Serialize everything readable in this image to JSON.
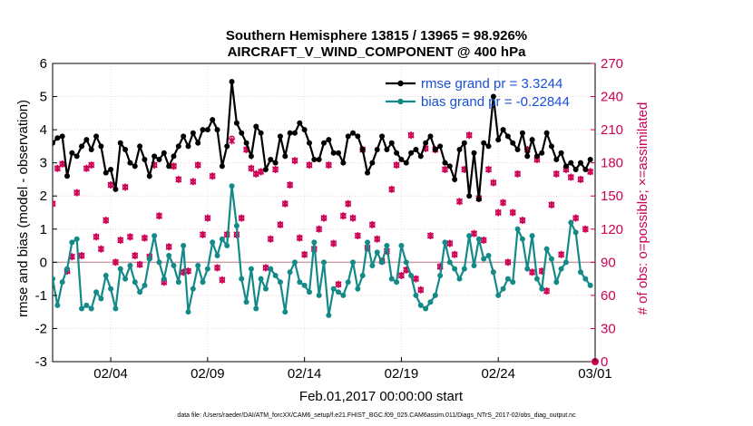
{
  "chart_data": {
    "type": "line",
    "title": "Southern Hemisphere 13815 / 13965 = 98.926%",
    "subtitle": "AIRCRAFT_V_WIND_COMPONENT @ 400 hPa",
    "xlabel": "Feb.01,2017 00:00:00 start",
    "ylabel": "rmse and bias (model - observation)",
    "ylabel_right": "# of obs: o=possible; ×=assimilated",
    "footnote": "data file: /Users/raeder/DAI/ATM_forcXX/CAM6_setup/f.e21.FHIST_BGC.f09_025.CAM6assim.011/Diags_NTrS_2017-02/obs_diag_output.nc",
    "xlim": [
      1.0,
      29.0
    ],
    "ylim": [
      -3,
      6
    ],
    "ylim_right": [
      0,
      270
    ],
    "x_ticks": [
      4,
      9,
      14,
      19,
      24,
      29
    ],
    "x_tick_labels": [
      "02/04",
      "02/09",
      "02/14",
      "02/19",
      "02/24",
      "03/01"
    ],
    "y_ticks": [
      -3,
      -2,
      -1,
      0,
      1,
      2,
      3,
      4,
      5,
      6
    ],
    "y_tick_labels": [
      "-3",
      "-2",
      "-1",
      "0",
      "1",
      "2",
      "3",
      "4",
      "5",
      "6"
    ],
    "y_right_ticks": [
      0,
      30,
      60,
      90,
      120,
      150,
      180,
      210,
      240,
      270
    ],
    "y_right_tick_labels": [
      "0",
      "30",
      "60",
      "90",
      "120",
      "150",
      "180",
      "210",
      "240",
      "270"
    ],
    "grid": true,
    "legend": [
      {
        "name": "rmse grand pr = 3.3244",
        "color": "#000000"
      },
      {
        "name": "bias grand pr = -0.22844",
        "color": "#138a88"
      }
    ],
    "series": [
      {
        "name": "rmse",
        "color": "#000000",
        "x": [
          1.0,
          1.25,
          1.5,
          1.75,
          2.0,
          2.25,
          2.5,
          2.75,
          3.0,
          3.25,
          3.5,
          3.75,
          4.0,
          4.25,
          4.5,
          4.75,
          5.0,
          5.25,
          5.5,
          5.75,
          6.0,
          6.25,
          6.5,
          6.75,
          7.0,
          7.25,
          7.5,
          7.75,
          8.0,
          8.25,
          8.5,
          8.75,
          9.0,
          9.25,
          9.5,
          9.75,
          10.0,
          10.25,
          10.5,
          10.75,
          11.0,
          11.25,
          11.5,
          11.75,
          12.0,
          12.25,
          12.5,
          12.75,
          13.0,
          13.25,
          13.5,
          13.75,
          14.0,
          14.25,
          14.5,
          14.75,
          15.0,
          15.25,
          15.5,
          15.75,
          16.0,
          16.25,
          16.5,
          16.75,
          17.0,
          17.25,
          17.5,
          17.75,
          18.0,
          18.25,
          18.5,
          18.75,
          19.0,
          19.25,
          19.5,
          19.75,
          20.0,
          20.25,
          20.5,
          20.75,
          21.0,
          21.25,
          21.5,
          21.75,
          22.0,
          22.25,
          22.5,
          22.75,
          23.0,
          23.25,
          23.5,
          23.75,
          24.0,
          24.25,
          24.5,
          24.75,
          25.0,
          25.25,
          25.5,
          25.75,
          26.0,
          26.25,
          26.5,
          26.75,
          27.0,
          27.25,
          27.5,
          27.75,
          28.0,
          28.25,
          28.5,
          28.75
        ],
        "values": [
          3.6,
          3.75,
          3.8,
          2.6,
          3.3,
          3.2,
          3.5,
          3.7,
          3.4,
          3.8,
          3.5,
          2.7,
          2.8,
          2.2,
          3.6,
          3.4,
          3.0,
          2.9,
          3.5,
          3.1,
          2.6,
          3.2,
          3.1,
          3.3,
          2.9,
          3.2,
          3.5,
          3.8,
          3.5,
          3.9,
          3.6,
          4.0,
          4.0,
          4.3,
          4.0,
          2.9,
          3.5,
          5.45,
          4.2,
          3.9,
          3.6,
          3.2,
          4.1,
          3.9,
          2.8,
          3.1,
          3.0,
          3.8,
          3.2,
          3.9,
          3.9,
          4.2,
          4.0,
          3.6,
          3.1,
          3.1,
          3.6,
          3.7,
          3.3,
          3.3,
          3.0,
          3.8,
          3.9,
          3.8,
          3.4,
          2.7,
          3.0,
          3.4,
          3.8,
          3.4,
          3.6,
          3.3,
          3.1,
          3.0,
          3.3,
          3.4,
          3.2,
          3.6,
          3.8,
          3.4,
          3.5,
          3.0,
          2.9,
          2.5,
          3.4,
          3.6,
          2.0,
          3.3,
          1.9,
          3.6,
          3.5,
          5.0,
          3.7,
          4.0,
          3.8,
          3.6,
          3.4,
          3.9,
          3.2,
          3.7,
          3.2,
          3.3,
          3.9,
          3.5,
          3.1,
          3.3,
          2.9,
          3.0,
          2.8,
          3.0,
          2.8,
          3.1
        ]
      },
      {
        "name": "bias",
        "color": "#138a88",
        "x": [
          1.0,
          1.25,
          1.5,
          1.75,
          2.0,
          2.25,
          2.5,
          2.75,
          3.0,
          3.25,
          3.5,
          3.75,
          4.0,
          4.25,
          4.5,
          4.75,
          5.0,
          5.25,
          5.5,
          5.75,
          6.0,
          6.25,
          6.5,
          6.75,
          7.0,
          7.25,
          7.5,
          7.75,
          8.0,
          8.25,
          8.5,
          8.75,
          9.0,
          9.25,
          9.5,
          9.75,
          10.0,
          10.25,
          10.5,
          10.75,
          11.0,
          11.25,
          11.5,
          11.75,
          12.0,
          12.25,
          12.5,
          12.75,
          13.0,
          13.25,
          13.5,
          13.75,
          14.0,
          14.25,
          14.5,
          14.75,
          15.0,
          15.25,
          15.5,
          15.75,
          16.0,
          16.25,
          16.5,
          16.75,
          17.0,
          17.25,
          17.5,
          17.75,
          18.0,
          18.25,
          18.5,
          18.75,
          19.0,
          19.25,
          19.5,
          19.75,
          20.0,
          20.25,
          20.5,
          20.75,
          21.0,
          21.25,
          21.5,
          21.75,
          22.0,
          22.25,
          22.5,
          22.75,
          23.0,
          23.25,
          23.5,
          23.75,
          24.0,
          24.25,
          24.5,
          24.75,
          25.0,
          25.25,
          25.5,
          25.75,
          26.0,
          26.25,
          26.5,
          26.75,
          27.0,
          27.25,
          27.5,
          27.75,
          28.0,
          28.25,
          28.5,
          28.75
        ],
        "values": [
          -0.5,
          -1.3,
          -0.6,
          -0.2,
          0.6,
          0.7,
          -1.4,
          -1.3,
          -1.4,
          -0.9,
          -1.1,
          -0.4,
          -0.8,
          -1.4,
          -0.2,
          -0.5,
          -0.1,
          -0.6,
          -0.9,
          -0.7,
          0.1,
          0.8,
          0.0,
          -0.5,
          0.2,
          -0.1,
          -0.6,
          0.5,
          -1.5,
          -0.8,
          -0.1,
          -0.6,
          -0.2,
          0.6,
          0.2,
          0.7,
          0.5,
          2.3,
          1.1,
          -0.5,
          -1.2,
          -0.2,
          -1.4,
          -0.5,
          -0.8,
          -0.2,
          -0.4,
          -0.6,
          -1.5,
          -0.3,
          0.0,
          -0.6,
          -0.7,
          -0.9,
          0.6,
          -1.0,
          0.0,
          -1.6,
          -0.8,
          -0.9,
          -1.0,
          -0.6,
          0.0,
          -0.8,
          -0.4,
          0.6,
          -0.1,
          0.3,
          0.0,
          0.5,
          -0.5,
          -0.6,
          0.5,
          0.0,
          -0.4,
          -1.0,
          -1.3,
          -1.4,
          -1.2,
          -1.0,
          -0.4,
          0.6,
          0.0,
          -0.2,
          -0.5,
          -0.2,
          0.8,
          -0.1,
          0.7,
          0.1,
          0.2,
          -0.3,
          -1.0,
          -0.8,
          -0.5,
          -0.6,
          1.0,
          0.7,
          -0.2,
          0.8,
          -0.5,
          -0.8,
          0.4,
          0.1,
          -0.6,
          -0.2,
          0.0,
          1.2,
          0.9,
          -0.3,
          -0.5,
          -0.7
        ]
      },
      {
        "name": "obs possible (o)",
        "color": "#cc0055",
        "axis": "right",
        "x": [
          1.0,
          1.25,
          1.5,
          1.75,
          2.0,
          2.25,
          2.5,
          2.75,
          3.0,
          3.25,
          3.5,
          3.75,
          4.0,
          4.25,
          4.5,
          4.75,
          5.0,
          5.25,
          5.5,
          5.75,
          6.0,
          6.25,
          6.5,
          6.75,
          7.0,
          7.25,
          7.5,
          7.75,
          8.0,
          8.25,
          8.5,
          8.75,
          9.0,
          9.25,
          9.5,
          9.75,
          10.0,
          10.25,
          10.5,
          10.75,
          11.0,
          11.25,
          11.5,
          11.75,
          12.0,
          12.25,
          12.5,
          12.75,
          13.0,
          13.25,
          13.5,
          13.75,
          14.0,
          14.25,
          14.5,
          14.75,
          15.0,
          15.25,
          15.5,
          15.75,
          16.0,
          16.25,
          16.5,
          16.75,
          17.0,
          17.25,
          17.5,
          17.75,
          18.0,
          18.25,
          18.5,
          18.75,
          19.0,
          19.25,
          19.5,
          19.75,
          20.0,
          20.25,
          20.5,
          20.75,
          21.0,
          21.25,
          21.5,
          21.75,
          22.0,
          22.25,
          22.5,
          22.75,
          23.0,
          23.25,
          23.5,
          23.75,
          24.0,
          24.25,
          24.5,
          24.75,
          25.0,
          25.25,
          25.5,
          25.75,
          26.0,
          26.25,
          26.5,
          26.75,
          27.0,
          27.25,
          27.5,
          27.75,
          28.0,
          28.25,
          28.5,
          28.75
        ],
        "values": [
          143,
          175,
          179,
          82,
          95,
          153,
          96,
          175,
          178,
          113,
          102,
          128,
          160,
          90,
          110,
          158,
          113,
          96,
          88,
          112,
          95,
          178,
          132,
          72,
          104,
          177,
          165,
          81,
          82,
          163,
          178,
          115,
          130,
          168,
          85,
          74,
          115,
          202,
          115,
          130,
          192,
          175,
          170,
          172,
          85,
          111,
          174,
          124,
          143,
          160,
          182,
          112,
          97,
          178,
          102,
          120,
          130,
          178,
          107,
          70,
          132,
          143,
          130,
          114,
          192,
          103,
          124,
          111,
          91,
          100,
          156,
          178,
          78,
          83,
          205,
          75,
          65,
          193,
          114,
          192,
          86,
          174,
          107,
          97,
          145,
          174,
          205,
          116,
          148,
          110,
          174,
          162,
          135,
          144,
          90,
          135,
          170,
          128,
          192,
          81,
          183,
          82,
          64,
          142,
          170,
          97,
          174,
          167,
          130,
          165,
          120,
          172
        ]
      },
      {
        "name": "obs assimilated (x)",
        "color": "#cc0055",
        "axis": "right",
        "x": [
          1.0,
          1.25,
          1.5,
          1.75,
          2.0,
          2.25,
          2.5,
          2.75,
          3.0,
          3.25,
          3.5,
          3.75,
          4.0,
          4.25,
          4.5,
          4.75,
          5.0,
          5.25,
          5.5,
          5.75,
          6.0,
          6.25,
          6.5,
          6.75,
          7.0,
          7.25,
          7.5,
          7.75,
          8.0,
          8.25,
          8.5,
          8.75,
          9.0,
          9.25,
          9.5,
          9.75,
          10.0,
          10.25,
          10.5,
          10.75,
          11.0,
          11.25,
          11.5,
          11.75,
          12.0,
          12.25,
          12.5,
          12.75,
          13.0,
          13.25,
          13.5,
          13.75,
          14.0,
          14.25,
          14.5,
          14.75,
          15.0,
          15.25,
          15.5,
          15.75,
          16.0,
          16.25,
          16.5,
          16.75,
          17.0,
          17.25,
          17.5,
          17.75,
          18.0,
          18.25,
          18.5,
          18.75,
          19.0,
          19.25,
          19.5,
          19.75,
          20.0,
          20.25,
          20.5,
          20.75,
          21.0,
          21.25,
          21.5,
          21.75,
          22.0,
          22.25,
          22.5,
          22.75,
          23.0,
          23.25,
          23.5,
          23.75,
          24.0,
          24.25,
          24.5,
          24.75,
          25.0,
          25.25,
          25.5,
          25.75,
          26.0,
          26.25,
          26.5,
          26.75,
          27.0,
          27.25,
          27.5,
          27.75,
          28.0,
          28.25,
          28.5,
          28.75
        ],
        "values": [
          143,
          175,
          179,
          82,
          95,
          153,
          96,
          175,
          178,
          113,
          102,
          128,
          160,
          90,
          110,
          158,
          113,
          96,
          88,
          112,
          95,
          178,
          132,
          72,
          104,
          177,
          165,
          81,
          82,
          163,
          178,
          115,
          130,
          168,
          85,
          74,
          115,
          200,
          115,
          130,
          192,
          175,
          170,
          172,
          85,
          111,
          174,
          124,
          143,
          160,
          182,
          112,
          97,
          178,
          102,
          120,
          130,
          178,
          107,
          70,
          132,
          143,
          130,
          114,
          192,
          103,
          124,
          111,
          91,
          100,
          156,
          178,
          78,
          83,
          205,
          75,
          65,
          193,
          114,
          192,
          86,
          174,
          107,
          97,
          145,
          174,
          205,
          116,
          148,
          110,
          174,
          162,
          135,
          144,
          90,
          135,
          170,
          128,
          192,
          81,
          183,
          82,
          64,
          142,
          170,
          97,
          174,
          167,
          130,
          165,
          120,
          172
        ]
      }
    ]
  }
}
